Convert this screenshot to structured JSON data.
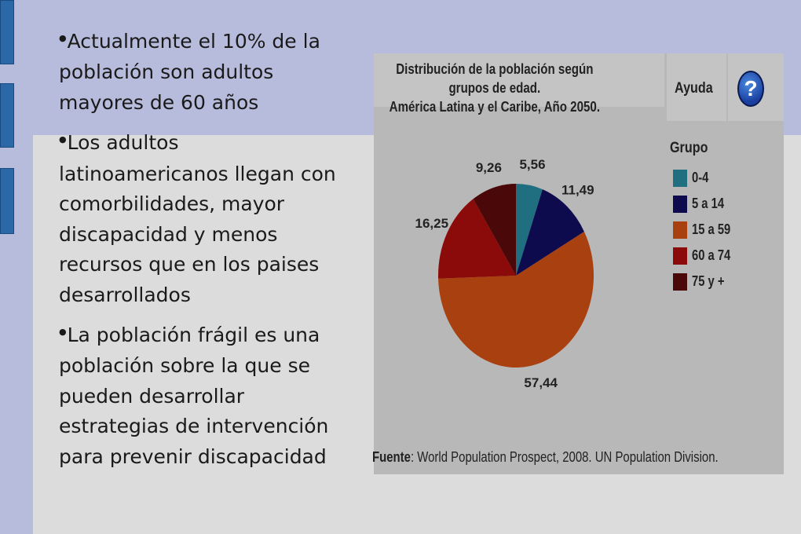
{
  "bullets": [
    "Actualmente el 10% de la población son adultos mayores de 60 años",
    "Los adultos latinoamericanos llegan con comorbilidades, mayor discapacidad y menos recursos que en los paises desarrollados",
    "La población frágil es una población sobre la que se pueden desarrollar estrategias de intervención para prevenir discapacidad"
  ],
  "help": {
    "label": "Ayuda",
    "icon": "question-mark-icon",
    "glyph": "?"
  },
  "source": {
    "prefix": "Fuente",
    "text": ": World Population Prospect, 2008. UN Population Division."
  },
  "chart_data": {
    "type": "pie",
    "title": "Distribución de la población según grupos de edad. América Latina y el Caribe, Año 2050.",
    "title_lines": [
      "Distribución de la población según grupos de edad.",
      "América Latina y el Caribe, Año 2050."
    ],
    "legend_title": "Grupo",
    "legend_position": "right",
    "categories": [
      "0-4",
      "5 a 14",
      "15 a 59",
      "60 a 74",
      "75 y +"
    ],
    "values": [
      5.56,
      11.49,
      57.44,
      16.25,
      9.26
    ],
    "value_labels": [
      "5,56",
      "11,49",
      "57,44",
      "16,25",
      "9,26"
    ],
    "colors": [
      "#1f6f80",
      "#0e0a4e",
      "#a84010",
      "#8b0a0a",
      "#4a0808"
    ]
  }
}
